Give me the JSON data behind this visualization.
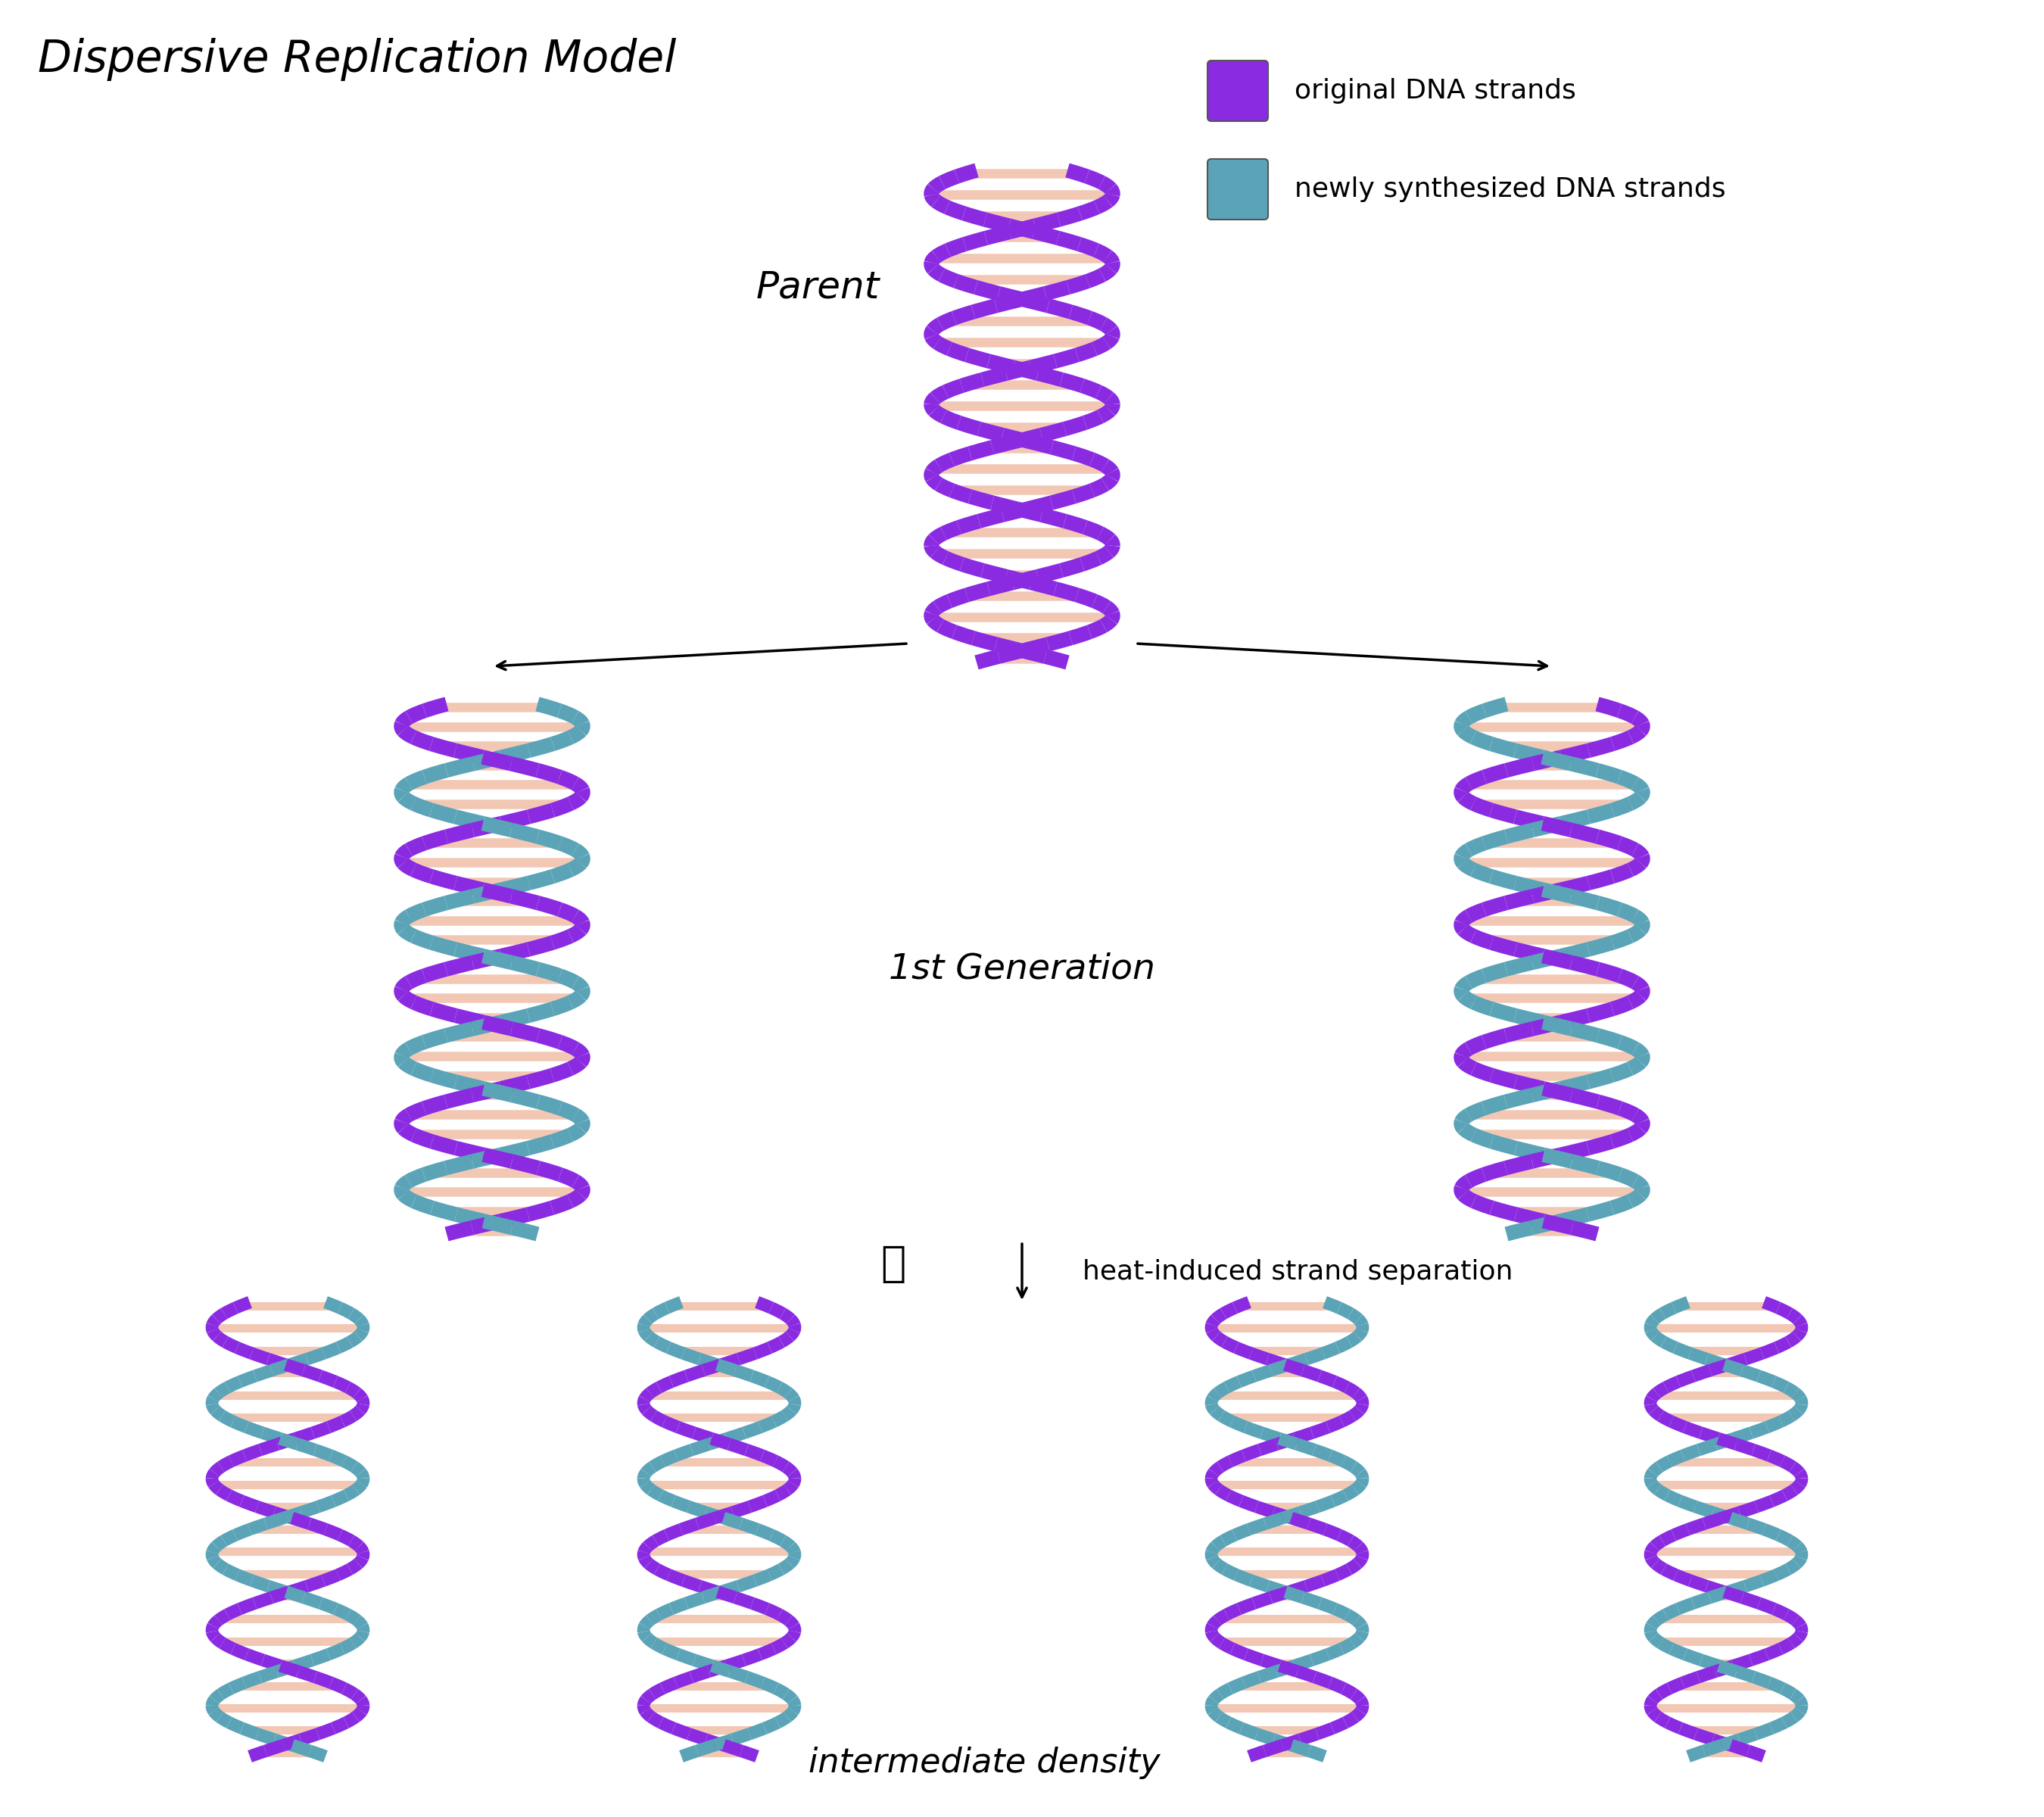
{
  "title": "Dispersive Replication Model",
  "bg_color": "#ffffff",
  "purple_color": "#8A2BE2",
  "teal_color": "#5BA4B8",
  "rung_color": "#F2C8B4",
  "legend_items": [
    {
      "label": "original DNA strands",
      "color": "#8A2BE2"
    },
    {
      "label": "newly synthesized DNA strands",
      "color": "#5BA4B8"
    }
  ],
  "labels": {
    "parent": "Parent",
    "first_gen": "1st Generation",
    "heat": "heat-induced strand separation",
    "density": "intermediate density"
  }
}
